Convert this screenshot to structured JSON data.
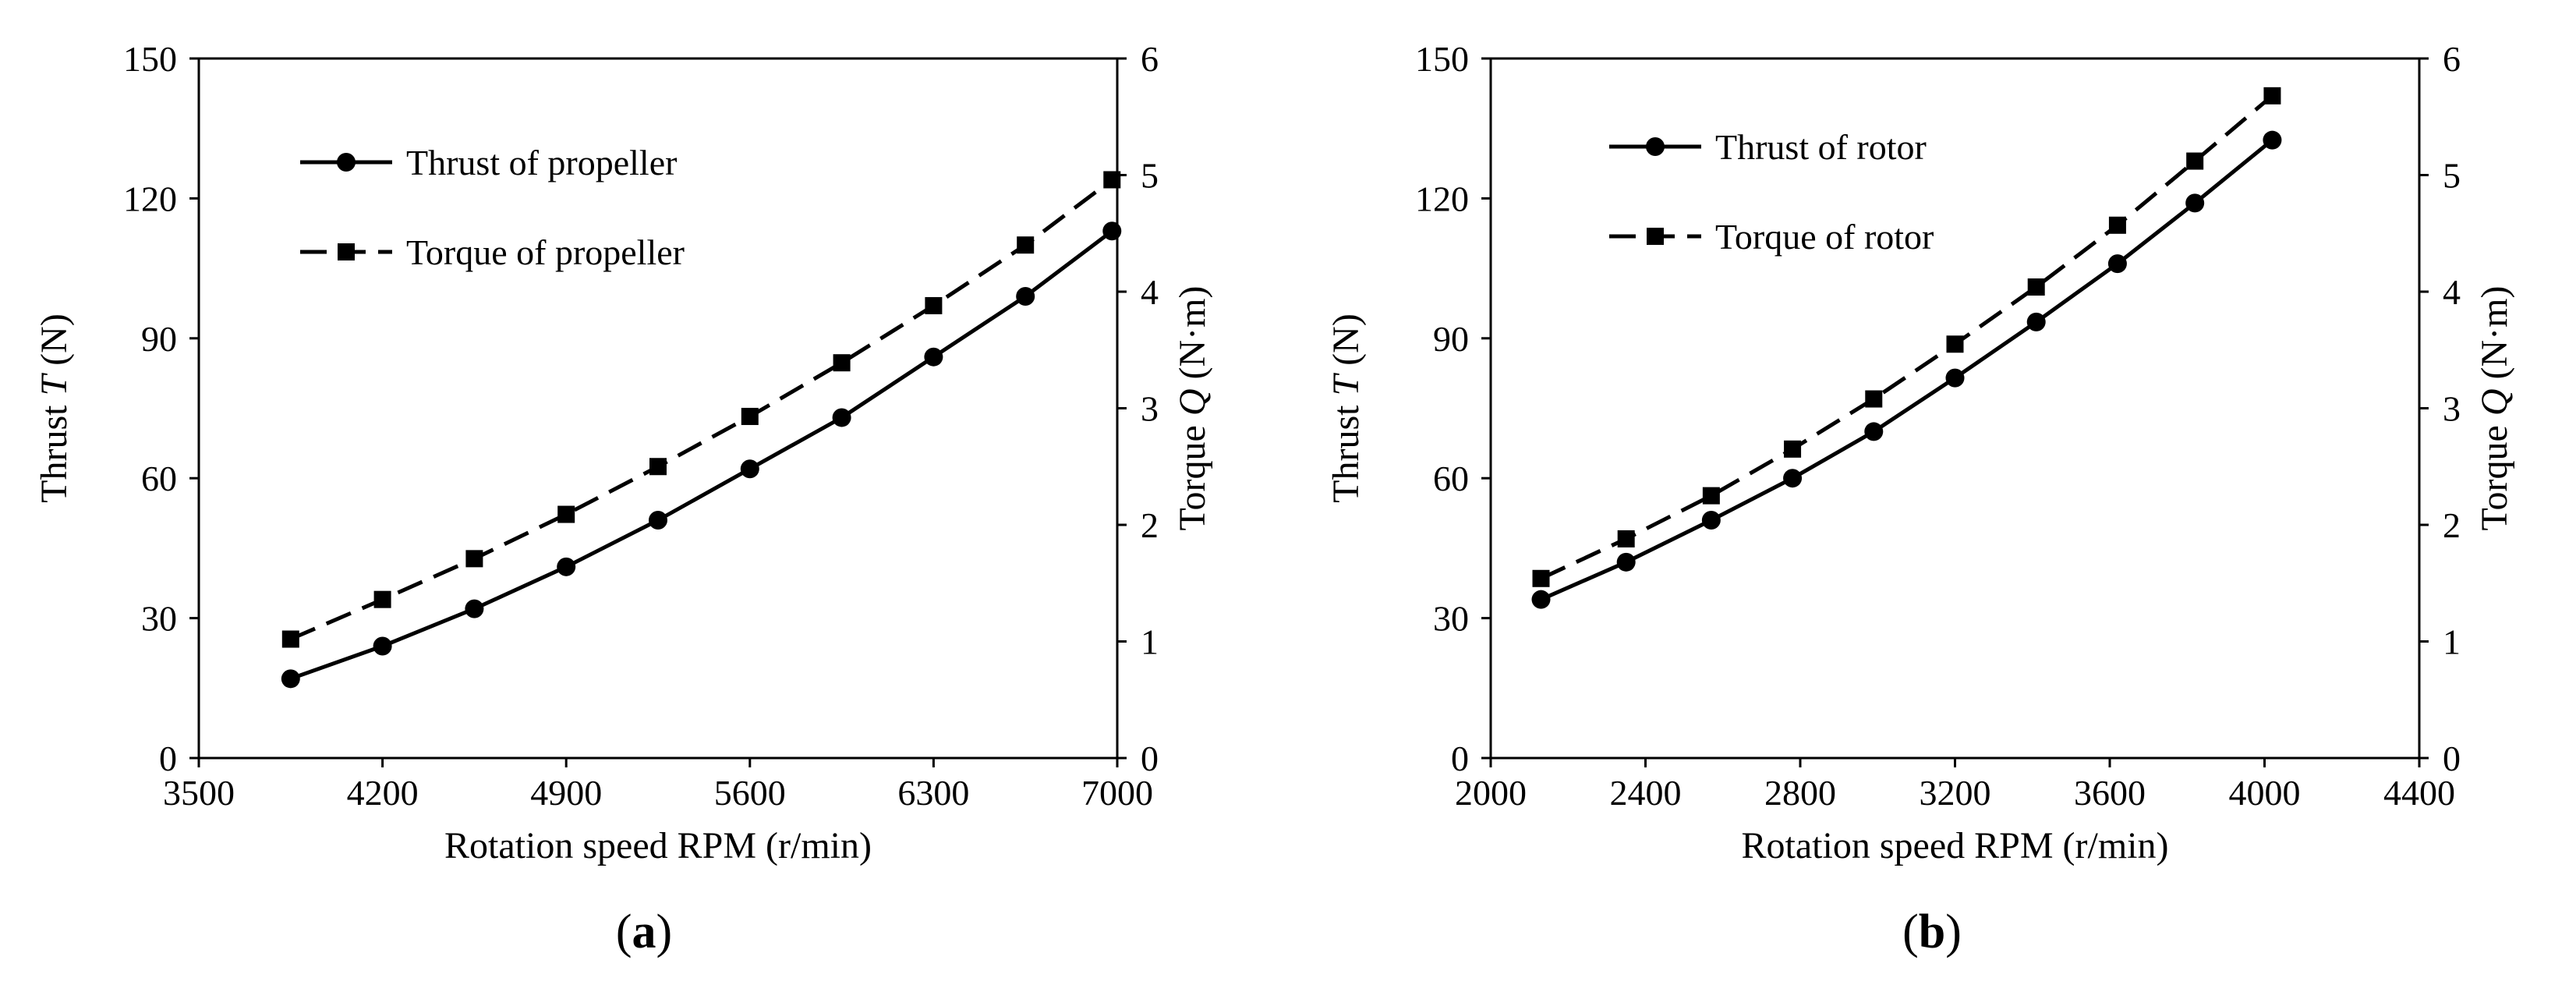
{
  "chart_data": [
    {
      "type": "line",
      "id": "a",
      "panel_label": "a",
      "xlabel": "Rotation speed RPM (r/min)",
      "ylabel_prefix": "Thrust ",
      "ylabel_symbol": "T",
      "ylabel_unit": " (N)",
      "y2label_prefix": "Torque ",
      "y2label_symbol": "Q",
      "y2label_unit": " (N·m)",
      "xlim": [
        3500,
        7000
      ],
      "xticks": [
        3500,
        4200,
        4900,
        5600,
        6300,
        7000
      ],
      "ylim": [
        0,
        150
      ],
      "yticks": [
        0,
        30,
        60,
        90,
        120,
        150
      ],
      "y2lim": [
        0,
        6
      ],
      "y2ticks": [
        0,
        1,
        2,
        3,
        4,
        5,
        6
      ],
      "grid": false,
      "legend_position": "top-left",
      "series": [
        {
          "name": "Thrust of propeller",
          "axis": "left",
          "marker": "circle",
          "line": "solid",
          "x": [
            3850,
            4200,
            4550,
            4900,
            5250,
            5600,
            5950,
            6300,
            6650,
            6980
          ],
          "values": [
            17,
            24,
            32,
            41,
            51,
            62,
            73,
            86,
            99,
            113
          ]
        },
        {
          "name": "Torque of propeller",
          "axis": "right",
          "marker": "square",
          "line": "dashed",
          "x": [
            3850,
            4200,
            4550,
            4900,
            5250,
            5600,
            5950,
            6300,
            6650,
            6980
          ],
          "values": [
            1.02,
            1.36,
            1.71,
            2.09,
            2.5,
            2.93,
            3.39,
            3.88,
            4.4,
            4.96
          ]
        }
      ]
    },
    {
      "type": "line",
      "id": "b",
      "panel_label": "b",
      "xlabel": "Rotation speed RPM (r/min)",
      "ylabel_prefix": "Thrust ",
      "ylabel_symbol": "T",
      "ylabel_unit": " (N)",
      "y2label_prefix": "Torque ",
      "y2label_symbol": "Q",
      "y2label_unit": " (N·m)",
      "xlim": [
        2000,
        4400
      ],
      "xticks": [
        2000,
        2400,
        2800,
        3200,
        3600,
        4000,
        4400
      ],
      "ylim": [
        0,
        150
      ],
      "yticks": [
        0,
        30,
        60,
        90,
        120,
        150
      ],
      "y2lim": [
        0,
        6
      ],
      "y2ticks": [
        0,
        1,
        2,
        3,
        4,
        5,
        6
      ],
      "grid": false,
      "legend_position": "top-left",
      "series": [
        {
          "name": "Thrust of rotor",
          "axis": "left",
          "marker": "circle",
          "line": "solid",
          "x": [
            2130,
            2350,
            2570,
            2780,
            2990,
            3200,
            3410,
            3620,
            3820,
            4020
          ],
          "values": [
            34,
            42,
            51,
            60,
            70,
            81.5,
            93.5,
            106,
            119,
            132.5
          ]
        },
        {
          "name": "Torque of rotor",
          "axis": "right",
          "marker": "square",
          "line": "dashed",
          "x": [
            2130,
            2350,
            2570,
            2780,
            2990,
            3200,
            3410,
            3620,
            3820,
            4020
          ],
          "values": [
            1.54,
            1.88,
            2.25,
            2.65,
            3.08,
            3.55,
            4.04,
            4.57,
            5.12,
            5.68
          ]
        }
      ]
    }
  ]
}
